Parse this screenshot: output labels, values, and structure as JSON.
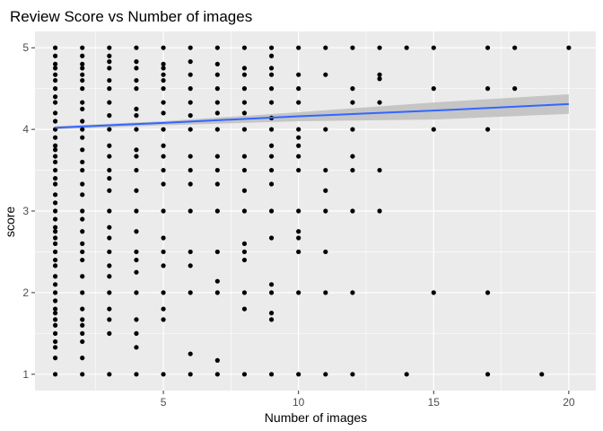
{
  "chart_data": {
    "type": "scatter",
    "title": "Review Score vs Number of images",
    "xlabel": "Number of images",
    "ylabel": "score",
    "xlim": [
      0.25,
      21
    ],
    "ylim": [
      0.8,
      5.2
    ],
    "x_ticks": [
      5,
      10,
      15,
      20
    ],
    "y_ticks": [
      1,
      2,
      3,
      4,
      5
    ],
    "grid": true,
    "background_color": "#EBEBEB",
    "point_color": "#000000",
    "trend": {
      "method": "linear regression with confidence band",
      "line_color": "#3366FF",
      "band_color": "#BEBEBE",
      "line": [
        [
          1,
          4.02
        ],
        [
          5,
          4.08
        ],
        [
          10,
          4.16
        ],
        [
          15,
          4.23
        ],
        [
          20,
          4.31
        ]
      ],
      "band_lower": [
        [
          1,
          4.0
        ],
        [
          5,
          4.05
        ],
        [
          10,
          4.1
        ],
        [
          15,
          4.12
        ],
        [
          20,
          4.19
        ]
      ],
      "band_upper": [
        [
          1,
          4.04
        ],
        [
          5,
          4.1
        ],
        [
          10,
          4.21
        ],
        [
          15,
          4.33
        ],
        [
          20,
          4.43
        ]
      ]
    },
    "series": [
      {
        "points": [
          [
            1,
            1
          ],
          [
            1,
            1.2
          ],
          [
            1,
            1.33
          ],
          [
            1,
            1.4
          ],
          [
            1,
            1.5
          ],
          [
            1,
            1.6
          ],
          [
            1,
            1.67
          ],
          [
            1,
            1.75
          ],
          [
            1,
            1.8
          ],
          [
            1,
            1.9
          ],
          [
            1,
            2
          ],
          [
            1,
            2.1
          ],
          [
            1,
            2.2
          ],
          [
            1,
            2.33
          ],
          [
            1,
            2.4
          ],
          [
            1,
            2.5
          ],
          [
            1,
            2.6
          ],
          [
            1,
            2.67
          ],
          [
            1,
            2.75
          ],
          [
            1,
            2.8
          ],
          [
            1,
            2.9
          ],
          [
            1,
            3
          ],
          [
            1,
            3.1
          ],
          [
            1,
            3.2
          ],
          [
            1,
            3.33
          ],
          [
            1,
            3.4
          ],
          [
            1,
            3.5
          ],
          [
            1,
            3.6
          ],
          [
            1,
            3.67
          ],
          [
            1,
            3.75
          ],
          [
            1,
            3.8
          ],
          [
            1,
            3.9
          ],
          [
            1,
            4
          ],
          [
            1,
            4.1
          ],
          [
            1,
            4.2
          ],
          [
            1,
            4.33
          ],
          [
            1,
            4.4
          ],
          [
            1,
            4.5
          ],
          [
            1,
            4.6
          ],
          [
            1,
            4.67
          ],
          [
            1,
            4.75
          ],
          [
            1,
            4.8
          ],
          [
            1,
            4.9
          ],
          [
            1,
            5
          ],
          [
            2,
            1
          ],
          [
            2,
            1.2
          ],
          [
            2,
            1.4
          ],
          [
            2,
            1.5
          ],
          [
            2,
            1.6
          ],
          [
            2,
            1.67
          ],
          [
            2,
            1.8
          ],
          [
            2,
            2
          ],
          [
            2,
            2.2
          ],
          [
            2,
            2.4
          ],
          [
            2,
            2.5
          ],
          [
            2,
            2.6
          ],
          [
            2,
            2.75
          ],
          [
            2,
            2.9
          ],
          [
            2,
            3
          ],
          [
            2,
            3.2
          ],
          [
            2,
            3.33
          ],
          [
            2,
            3.5
          ],
          [
            2,
            3.6
          ],
          [
            2,
            3.75
          ],
          [
            2,
            3.9
          ],
          [
            2,
            4
          ],
          [
            2,
            4.1
          ],
          [
            2,
            4.25
          ],
          [
            2,
            4.33
          ],
          [
            2,
            4.5
          ],
          [
            2,
            4.6
          ],
          [
            2,
            4.67
          ],
          [
            2,
            4.75
          ],
          [
            2,
            4.8
          ],
          [
            2,
            4.9
          ],
          [
            2,
            5
          ],
          [
            3,
            1
          ],
          [
            3,
            1.5
          ],
          [
            3,
            1.67
          ],
          [
            3,
            1.8
          ],
          [
            3,
            2
          ],
          [
            3,
            2.2
          ],
          [
            3,
            2.33
          ],
          [
            3,
            2.5
          ],
          [
            3,
            2.67
          ],
          [
            3,
            2.8
          ],
          [
            3,
            3
          ],
          [
            3,
            3.25
          ],
          [
            3,
            3.4
          ],
          [
            3,
            3.5
          ],
          [
            3,
            3.67
          ],
          [
            3,
            3.8
          ],
          [
            3,
            4
          ],
          [
            3,
            4.17
          ],
          [
            3,
            4.33
          ],
          [
            3,
            4.5
          ],
          [
            3,
            4.6
          ],
          [
            3,
            4.75
          ],
          [
            3,
            4.83
          ],
          [
            3,
            4.9
          ],
          [
            3,
            5
          ],
          [
            4,
            1
          ],
          [
            4,
            1.33
          ],
          [
            4,
            1.5
          ],
          [
            4,
            1.67
          ],
          [
            4,
            2
          ],
          [
            4,
            2.25
          ],
          [
            4,
            2.4
          ],
          [
            4,
            2.5
          ],
          [
            4,
            2.75
          ],
          [
            4,
            3
          ],
          [
            4,
            3.25
          ],
          [
            4,
            3.5
          ],
          [
            4,
            3.67
          ],
          [
            4,
            3.75
          ],
          [
            4,
            4
          ],
          [
            4,
            4.17
          ],
          [
            4,
            4.25
          ],
          [
            4,
            4.5
          ],
          [
            4,
            4.6
          ],
          [
            4,
            4.75
          ],
          [
            4,
            4.83
          ],
          [
            4,
            5
          ],
          [
            5,
            1
          ],
          [
            5,
            1.67
          ],
          [
            5,
            1.8
          ],
          [
            5,
            2
          ],
          [
            5,
            2.33
          ],
          [
            5,
            2.5
          ],
          [
            5,
            2.67
          ],
          [
            5,
            3
          ],
          [
            5,
            3.33
          ],
          [
            5,
            3.5
          ],
          [
            5,
            3.67
          ],
          [
            5,
            3.8
          ],
          [
            5,
            4
          ],
          [
            5,
            4.2
          ],
          [
            5,
            4.33
          ],
          [
            5,
            4.5
          ],
          [
            5,
            4.6
          ],
          [
            5,
            4.67
          ],
          [
            5,
            4.75
          ],
          [
            5,
            4.8
          ],
          [
            5,
            5
          ],
          [
            6,
            1
          ],
          [
            6,
            1.25
          ],
          [
            6,
            2
          ],
          [
            6,
            2.33
          ],
          [
            6,
            2.5
          ],
          [
            6,
            3
          ],
          [
            6,
            3.33
          ],
          [
            6,
            3.5
          ],
          [
            6,
            3.67
          ],
          [
            6,
            4
          ],
          [
            6,
            4.17
          ],
          [
            6,
            4.33
          ],
          [
            6,
            4.5
          ],
          [
            6,
            4.67
          ],
          [
            6,
            4.83
          ],
          [
            6,
            5
          ],
          [
            7,
            1
          ],
          [
            7,
            1.17
          ],
          [
            7,
            2
          ],
          [
            7,
            2.14
          ],
          [
            7,
            2.5
          ],
          [
            7,
            3
          ],
          [
            7,
            3.33
          ],
          [
            7,
            3.5
          ],
          [
            7,
            3.67
          ],
          [
            7,
            4
          ],
          [
            7,
            4.2
          ],
          [
            7,
            4.33
          ],
          [
            7,
            4.5
          ],
          [
            7,
            4.67
          ],
          [
            7,
            4.8
          ],
          [
            7,
            5
          ],
          [
            8,
            1
          ],
          [
            8,
            1.8
          ],
          [
            8,
            2
          ],
          [
            8,
            2.4
          ],
          [
            8,
            2.5
          ],
          [
            8,
            2.6
          ],
          [
            8,
            3
          ],
          [
            8,
            3.25
          ],
          [
            8,
            3.5
          ],
          [
            8,
            3.67
          ],
          [
            8,
            4
          ],
          [
            8,
            4.2
          ],
          [
            8,
            4.33
          ],
          [
            8,
            4.5
          ],
          [
            8,
            4.67
          ],
          [
            8,
            4.75
          ],
          [
            8,
            5
          ],
          [
            9,
            1
          ],
          [
            9,
            1.67
          ],
          [
            9,
            1.75
          ],
          [
            9,
            2
          ],
          [
            9,
            2.1
          ],
          [
            9,
            2.67
          ],
          [
            9,
            3
          ],
          [
            9,
            3.33
          ],
          [
            9,
            3.5
          ],
          [
            9,
            3.67
          ],
          [
            9,
            3.8
          ],
          [
            9,
            4
          ],
          [
            9,
            4.14
          ],
          [
            9,
            4.33
          ],
          [
            9,
            4.5
          ],
          [
            9,
            4.67
          ],
          [
            9,
            4.75
          ],
          [
            9,
            4.9
          ],
          [
            9,
            5
          ],
          [
            10,
            1
          ],
          [
            10,
            2
          ],
          [
            10,
            2.5
          ],
          [
            10,
            2.67
          ],
          [
            10,
            2.75
          ],
          [
            10,
            3
          ],
          [
            10,
            3.5
          ],
          [
            10,
            3.67
          ],
          [
            10,
            3.8
          ],
          [
            10,
            3.9
          ],
          [
            10,
            4
          ],
          [
            10,
            4.33
          ],
          [
            10,
            4.5
          ],
          [
            10,
            4.67
          ],
          [
            10,
            5
          ],
          [
            11,
            1
          ],
          [
            11,
            2
          ],
          [
            11,
            2.5
          ],
          [
            11,
            3
          ],
          [
            11,
            3.25
          ],
          [
            11,
            3.5
          ],
          [
            11,
            4
          ],
          [
            11,
            4.67
          ],
          [
            11,
            5
          ],
          [
            12,
            1
          ],
          [
            12,
            2
          ],
          [
            12,
            3
          ],
          [
            12,
            3.5
          ],
          [
            12,
            3.67
          ],
          [
            12,
            4
          ],
          [
            12,
            4.33
          ],
          [
            12,
            4.5
          ],
          [
            12,
            5
          ],
          [
            13,
            3
          ],
          [
            13,
            3.5
          ],
          [
            13,
            4.33
          ],
          [
            13,
            4.62
          ],
          [
            13,
            4.67
          ],
          [
            13,
            5
          ],
          [
            14,
            1
          ],
          [
            14,
            5
          ],
          [
            15,
            2
          ],
          [
            15,
            4
          ],
          [
            15,
            4.5
          ],
          [
            15,
            5
          ],
          [
            17,
            1
          ],
          [
            17,
            2
          ],
          [
            17,
            4
          ],
          [
            17,
            4.5
          ],
          [
            17,
            5
          ],
          [
            18,
            4.5
          ],
          [
            18,
            5
          ],
          [
            19,
            1
          ],
          [
            20,
            5
          ]
        ]
      }
    ]
  }
}
